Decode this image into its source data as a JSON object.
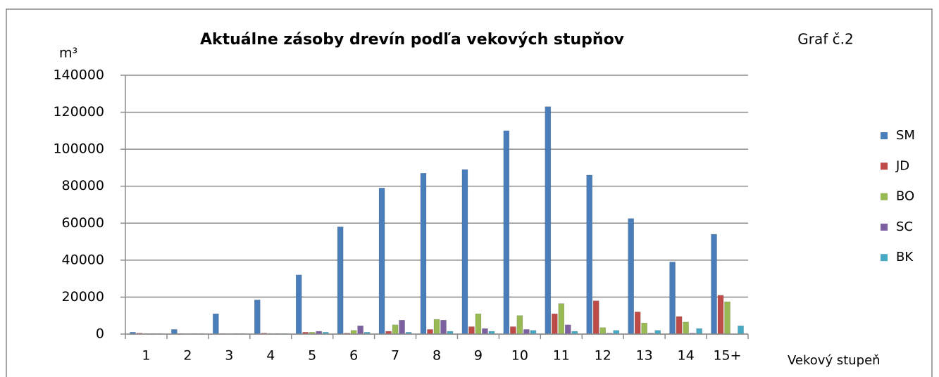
{
  "chart_data": {
    "type": "bar",
    "title": "Aktuálne zásoby drevín podľa vekových stupňov",
    "annotation": "Graf č.2",
    "y_label": "m³",
    "x_label": "Vekový stupeň",
    "categories": [
      "1",
      "2",
      "3",
      "4",
      "5",
      "6",
      "7",
      "8",
      "9",
      "10",
      "11",
      "12",
      "13",
      "14",
      "15+"
    ],
    "series": [
      {
        "name": "SM",
        "color": "#4a7ebb",
        "values": [
          1000,
          2500,
          11000,
          18500,
          32000,
          58000,
          79000,
          87000,
          89000,
          110000,
          123000,
          86000,
          62500,
          39000,
          54000
        ]
      },
      {
        "name": "JD",
        "color": "#be4b48",
        "values": [
          500,
          300,
          300,
          500,
          1000,
          500,
          1500,
          2500,
          4000,
          4000,
          11000,
          18000,
          12000,
          9500,
          21000
        ]
      },
      {
        "name": "BO",
        "color": "#98b954",
        "values": [
          300,
          300,
          300,
          300,
          1000,
          2000,
          5000,
          8000,
          11000,
          10000,
          16500,
          3500,
          6000,
          6500,
          17500
        ]
      },
      {
        "name": "SC",
        "color": "#7d60a0",
        "values": [
          300,
          300,
          300,
          300,
          1500,
          4500,
          7500,
          7500,
          3000,
          2500,
          5000,
          500,
          500,
          500,
          0
        ]
      },
      {
        "name": "BK",
        "color": "#46aac5",
        "values": [
          300,
          300,
          300,
          300,
          1000,
          1000,
          1000,
          1500,
          1500,
          2000,
          1500,
          2000,
          2000,
          3000,
          4500
        ]
      }
    ],
    "ylim": [
      0,
      140000
    ],
    "yticks": [
      0,
      20000,
      40000,
      60000,
      80000,
      100000,
      120000,
      140000
    ],
    "grid": true,
    "legend": "right"
  }
}
